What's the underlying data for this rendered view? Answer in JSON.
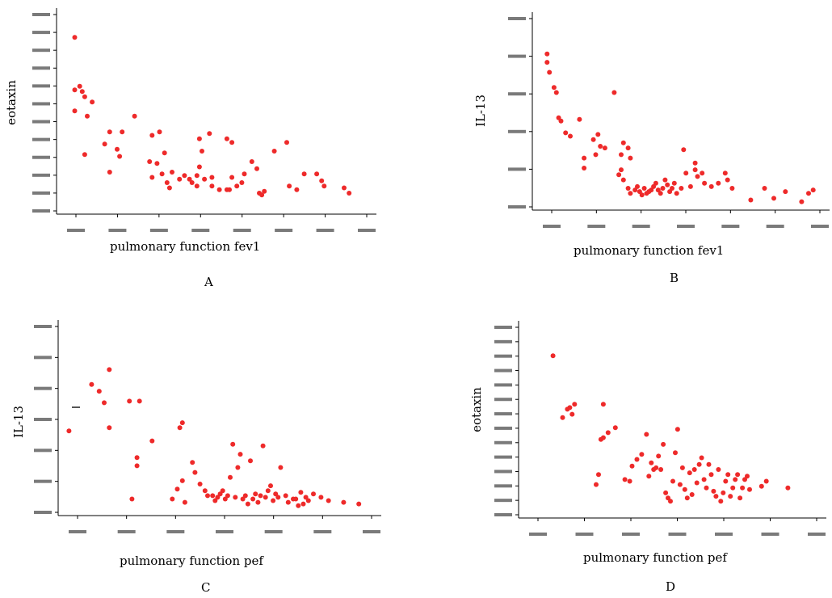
{
  "chart_data": [
    {
      "type": "scatter",
      "panel_letter": "A",
      "xlabel": "pulmonary function fev1",
      "ylabel": "eotaxin",
      "xlim": [
        0,
        12.5
      ],
      "ylim": [
        0,
        11.4
      ],
      "x_ticks": 8,
      "y_ticks": 12,
      "tick_labels_legible": false,
      "points": [
        [
          0.6,
          10.1
        ],
        [
          0.6,
          7.1
        ],
        [
          0.8,
          7.3
        ],
        [
          0.9,
          7.0
        ],
        [
          1.0,
          6.7
        ],
        [
          0.6,
          5.9
        ],
        [
          1.3,
          6.4
        ],
        [
          1.1,
          5.6
        ],
        [
          1.0,
          3.4
        ],
        [
          2.0,
          4.7
        ],
        [
          1.8,
          4.0
        ],
        [
          2.3,
          3.7
        ],
        [
          2.4,
          3.3
        ],
        [
          2.5,
          4.7
        ],
        [
          3.0,
          5.6
        ],
        [
          2.0,
          2.4
        ],
        [
          4.0,
          4.7
        ],
        [
          3.7,
          4.5
        ],
        [
          4.2,
          3.5
        ],
        [
          3.6,
          3.0
        ],
        [
          3.9,
          2.9
        ],
        [
          3.7,
          2.1
        ],
        [
          4.1,
          2.3
        ],
        [
          4.5,
          2.4
        ],
        [
          4.3,
          1.8
        ],
        [
          4.4,
          1.5
        ],
        [
          4.8,
          2.0
        ],
        [
          5.0,
          2.2
        ],
        [
          5.2,
          2.0
        ],
        [
          5.3,
          1.8
        ],
        [
          5.5,
          2.2
        ],
        [
          5.5,
          1.6
        ],
        [
          5.6,
          2.7
        ],
        [
          5.8,
          2.0
        ],
        [
          5.7,
          3.6
        ],
        [
          5.6,
          4.3
        ],
        [
          6.0,
          4.6
        ],
        [
          6.1,
          2.1
        ],
        [
          6.1,
          1.6
        ],
        [
          6.4,
          1.4
        ],
        [
          6.7,
          1.4
        ],
        [
          6.7,
          4.3
        ],
        [
          6.9,
          4.1
        ],
        [
          6.8,
          1.4
        ],
        [
          6.9,
          2.1
        ],
        [
          7.1,
          1.6
        ],
        [
          7.3,
          1.8
        ],
        [
          7.4,
          2.3
        ],
        [
          8.0,
          1.2
        ],
        [
          8.2,
          1.3
        ],
        [
          7.9,
          2.6
        ],
        [
          8.1,
          1.1
        ],
        [
          7.7,
          3.0
        ],
        [
          8.6,
          3.6
        ],
        [
          9.1,
          4.1
        ],
        [
          9.2,
          1.6
        ],
        [
          9.5,
          1.4
        ],
        [
          9.8,
          2.3
        ],
        [
          10.3,
          2.3
        ],
        [
          10.5,
          1.9
        ],
        [
          10.6,
          1.6
        ],
        [
          11.4,
          1.5
        ],
        [
          11.6,
          1.2
        ]
      ]
    },
    {
      "type": "scatter",
      "panel_letter": "B",
      "xlabel": "pulmonary function fev1",
      "ylabel": "IL-13",
      "xlim": [
        0,
        12.5
      ],
      "ylim": [
        0,
        11.4
      ],
      "x_ticks": 7,
      "y_ticks": 6,
      "tick_labels_legible": false,
      "points": [
        [
          0.5,
          9.3
        ],
        [
          0.5,
          8.8
        ],
        [
          0.6,
          8.2
        ],
        [
          0.8,
          7.3
        ],
        [
          0.9,
          7.0
        ],
        [
          1.0,
          5.5
        ],
        [
          1.1,
          5.3
        ],
        [
          1.3,
          4.6
        ],
        [
          1.5,
          4.4
        ],
        [
          1.9,
          5.4
        ],
        [
          2.1,
          3.1
        ],
        [
          2.1,
          2.5
        ],
        [
          2.5,
          4.2
        ],
        [
          2.6,
          3.3
        ],
        [
          2.7,
          4.5
        ],
        [
          2.8,
          3.8
        ],
        [
          3.0,
          3.7
        ],
        [
          3.4,
          7.0
        ],
        [
          3.6,
          2.1
        ],
        [
          3.7,
          2.4
        ],
        [
          3.7,
          3.3
        ],
        [
          3.8,
          4.0
        ],
        [
          4.0,
          3.7
        ],
        [
          4.1,
          3.1
        ],
        [
          3.8,
          1.8
        ],
        [
          4.0,
          1.3
        ],
        [
          4.1,
          1.0
        ],
        [
          4.3,
          1.2
        ],
        [
          4.4,
          1.4
        ],
        [
          4.5,
          1.1
        ],
        [
          4.6,
          0.9
        ],
        [
          4.7,
          1.3
        ],
        [
          4.8,
          1.0
        ],
        [
          4.9,
          1.1
        ],
        [
          5.0,
          1.2
        ],
        [
          5.1,
          1.4
        ],
        [
          5.2,
          1.6
        ],
        [
          5.3,
          1.2
        ],
        [
          5.4,
          1.0
        ],
        [
          5.5,
          1.3
        ],
        [
          5.6,
          1.8
        ],
        [
          5.7,
          1.5
        ],
        [
          5.8,
          1.1
        ],
        [
          5.9,
          1.3
        ],
        [
          6.0,
          1.6
        ],
        [
          6.1,
          1.0
        ],
        [
          6.3,
          1.3
        ],
        [
          6.4,
          3.6
        ],
        [
          6.5,
          2.2
        ],
        [
          6.7,
          1.4
        ],
        [
          6.9,
          2.4
        ],
        [
          6.9,
          2.8
        ],
        [
          7.0,
          2.0
        ],
        [
          7.2,
          2.2
        ],
        [
          7.3,
          1.6
        ],
        [
          7.6,
          1.4
        ],
        [
          7.9,
          1.6
        ],
        [
          8.2,
          2.2
        ],
        [
          8.3,
          1.8
        ],
        [
          8.5,
          1.3
        ],
        [
          9.3,
          0.6
        ],
        [
          9.9,
          1.3
        ],
        [
          10.3,
          0.7
        ],
        [
          10.8,
          1.1
        ],
        [
          11.5,
          0.5
        ],
        [
          11.8,
          1.0
        ],
        [
          12.0,
          1.2
        ]
      ]
    },
    {
      "type": "scatter",
      "panel_letter": "C",
      "xlabel": "pulmonary function  pef",
      "ylabel": "IL-13",
      "xlim": [
        0,
        12.5
      ],
      "ylim": [
        0,
        11.4
      ],
      "x_ticks": 7,
      "y_ticks": 7,
      "tick_labels_legible": false,
      "points": [
        [
          0.3,
          5.1
        ],
        [
          1.2,
          7.9
        ],
        [
          1.5,
          7.5
        ],
        [
          1.7,
          6.8
        ],
        [
          1.9,
          8.8
        ],
        [
          1.9,
          5.3
        ],
        [
          2.7,
          6.9
        ],
        [
          2.8,
          1.0
        ],
        [
          3.0,
          3.0
        ],
        [
          3.0,
          3.5
        ],
        [
          3.1,
          6.9
        ],
        [
          3.6,
          4.5
        ],
        [
          4.4,
          1.0
        ],
        [
          4.6,
          1.6
        ],
        [
          4.8,
          2.1
        ],
        [
          4.9,
          0.8
        ],
        [
          4.7,
          5.3
        ],
        [
          4.8,
          5.6
        ],
        [
          5.2,
          3.2
        ],
        [
          5.3,
          2.6
        ],
        [
          5.5,
          1.9
        ],
        [
          5.7,
          1.5
        ],
        [
          5.8,
          1.2
        ],
        [
          6.0,
          1.2
        ],
        [
          6.1,
          0.9
        ],
        [
          6.2,
          1.1
        ],
        [
          6.3,
          1.3
        ],
        [
          6.4,
          1.5
        ],
        [
          6.5,
          1.0
        ],
        [
          6.6,
          1.2
        ],
        [
          6.7,
          2.3
        ],
        [
          6.8,
          4.3
        ],
        [
          6.9,
          1.1
        ],
        [
          7.0,
          2.9
        ],
        [
          7.1,
          3.7
        ],
        [
          7.2,
          1.0
        ],
        [
          7.3,
          1.2
        ],
        [
          7.4,
          0.7
        ],
        [
          7.5,
          3.3
        ],
        [
          7.6,
          1.0
        ],
        [
          7.7,
          1.3
        ],
        [
          7.8,
          0.8
        ],
        [
          7.9,
          1.2
        ],
        [
          8.0,
          4.2
        ],
        [
          8.1,
          1.1
        ],
        [
          8.2,
          1.5
        ],
        [
          8.3,
          1.8
        ],
        [
          8.4,
          0.9
        ],
        [
          8.5,
          1.3
        ],
        [
          8.6,
          1.1
        ],
        [
          8.7,
          2.9
        ],
        [
          8.9,
          1.2
        ],
        [
          9.0,
          0.8
        ],
        [
          9.2,
          1.0
        ],
        [
          9.3,
          1.0
        ],
        [
          9.4,
          0.6
        ],
        [
          9.5,
          1.4
        ],
        [
          9.6,
          0.7
        ],
        [
          9.7,
          1.1
        ],
        [
          9.8,
          0.9
        ],
        [
          10.0,
          1.3
        ],
        [
          10.3,
          1.1
        ],
        [
          10.6,
          0.9
        ],
        [
          11.2,
          0.8
        ],
        [
          11.8,
          0.7
        ]
      ]
    },
    {
      "type": "scatter",
      "panel_letter": "D",
      "xlabel": "pulmonary function  pef",
      "ylabel": "eotaxin",
      "xlim": [
        0,
        12.5
      ],
      "ylim": [
        0,
        11.4
      ],
      "x_ticks": 7,
      "y_ticks": 14,
      "tick_labels_legible": false,
      "points": [
        [
          1.3,
          9.7
        ],
        [
          1.7,
          6.0
        ],
        [
          1.9,
          6.5
        ],
        [
          2.0,
          6.6
        ],
        [
          2.1,
          6.2
        ],
        [
          2.2,
          6.8
        ],
        [
          3.1,
          2.0
        ],
        [
          3.2,
          2.6
        ],
        [
          3.3,
          4.7
        ],
        [
          3.4,
          6.8
        ],
        [
          3.4,
          4.8
        ],
        [
          3.6,
          5.1
        ],
        [
          3.9,
          5.4
        ],
        [
          4.3,
          2.3
        ],
        [
          4.5,
          2.2
        ],
        [
          4.6,
          3.1
        ],
        [
          4.8,
          3.5
        ],
        [
          5.0,
          3.8
        ],
        [
          5.2,
          5.0
        ],
        [
          5.3,
          2.5
        ],
        [
          5.4,
          3.3
        ],
        [
          5.5,
          2.9
        ],
        [
          5.6,
          3.0
        ],
        [
          5.7,
          3.7
        ],
        [
          5.8,
          2.9
        ],
        [
          5.9,
          4.4
        ],
        [
          6.0,
          1.5
        ],
        [
          6.1,
          1.2
        ],
        [
          6.2,
          1.0
        ],
        [
          6.3,
          2.2
        ],
        [
          6.4,
          3.9
        ],
        [
          6.5,
          5.3
        ],
        [
          6.6,
          2.0
        ],
        [
          6.7,
          3.0
        ],
        [
          6.8,
          1.7
        ],
        [
          6.9,
          1.2
        ],
        [
          7.0,
          2.7
        ],
        [
          7.1,
          1.4
        ],
        [
          7.2,
          2.9
        ],
        [
          7.3,
          2.1
        ],
        [
          7.4,
          3.2
        ],
        [
          7.5,
          3.6
        ],
        [
          7.6,
          2.3
        ],
        [
          7.7,
          1.8
        ],
        [
          7.8,
          3.2
        ],
        [
          7.9,
          2.6
        ],
        [
          8.0,
          1.6
        ],
        [
          8.1,
          1.3
        ],
        [
          8.2,
          2.9
        ],
        [
          8.3,
          1.0
        ],
        [
          8.4,
          1.5
        ],
        [
          8.5,
          2.2
        ],
        [
          8.6,
          2.6
        ],
        [
          8.7,
          1.3
        ],
        [
          8.8,
          1.8
        ],
        [
          8.9,
          2.3
        ],
        [
          9.0,
          2.6
        ],
        [
          9.1,
          1.2
        ],
        [
          9.2,
          1.8
        ],
        [
          9.3,
          2.3
        ],
        [
          9.4,
          2.5
        ],
        [
          9.5,
          1.7
        ],
        [
          10.0,
          1.9
        ],
        [
          10.2,
          2.2
        ],
        [
          11.1,
          1.8
        ]
      ]
    }
  ]
}
